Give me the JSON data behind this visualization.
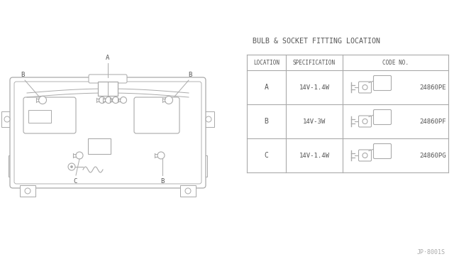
{
  "bg_color": "#ffffff",
  "line_color": "#aaaaaa",
  "text_color": "#555555",
  "table_title": "BULB & SOCKET FITTING LOCATION",
  "table_headers": [
    "LOCATION",
    "SPECIFICATION",
    "CODE NO."
  ],
  "table_rows": [
    [
      "A",
      "14V-1.4W",
      "24860PE"
    ],
    [
      "B",
      "14V-3W",
      "24860PF"
    ],
    [
      "C",
      "14V-1.4W",
      "24860PG"
    ]
  ],
  "watermark": "JP·8001S"
}
